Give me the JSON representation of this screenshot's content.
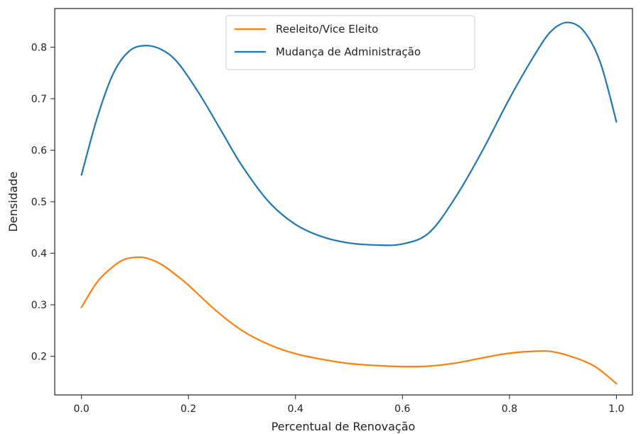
{
  "chart_data": {
    "type": "line",
    "title": "",
    "xlabel": "Percentual de Renovação",
    "ylabel": "Densidade",
    "xlim": [
      -0.05,
      1.03
    ],
    "ylim": [
      0.125,
      0.875
    ],
    "grid": false,
    "legend_position": "top-center",
    "x_ticks": [
      0.0,
      0.2,
      0.4,
      0.6,
      0.8,
      1.0
    ],
    "x_tick_labels": [
      "0.0",
      "0.2",
      "0.4",
      "0.6",
      "0.8",
      "1.0"
    ],
    "y_ticks": [
      0.2,
      0.3,
      0.4,
      0.5,
      0.6,
      0.7,
      0.8
    ],
    "y_tick_labels": [
      "0.2",
      "0.3",
      "0.4",
      "0.5",
      "0.6",
      "0.7",
      "0.8"
    ],
    "series": [
      {
        "name": "Reeleito/Vice Eleito",
        "color": "#ff7f0e",
        "x": [
          0.0,
          0.03,
          0.06,
          0.08,
          0.1,
          0.12,
          0.15,
          0.18,
          0.2,
          0.25,
          0.3,
          0.35,
          0.4,
          0.45,
          0.5,
          0.55,
          0.6,
          0.65,
          0.7,
          0.75,
          0.8,
          0.85,
          0.88,
          0.92,
          0.96,
          1.0
        ],
        "y": [
          0.295,
          0.345,
          0.375,
          0.388,
          0.392,
          0.391,
          0.378,
          0.355,
          0.338,
          0.29,
          0.25,
          0.223,
          0.205,
          0.194,
          0.186,
          0.182,
          0.18,
          0.181,
          0.187,
          0.197,
          0.206,
          0.21,
          0.209,
          0.198,
          0.18,
          0.147
        ]
      },
      {
        "name": "Mudança de Administração",
        "color": "#1f77b4",
        "x": [
          0.0,
          0.03,
          0.06,
          0.09,
          0.12,
          0.15,
          0.18,
          0.22,
          0.26,
          0.3,
          0.35,
          0.4,
          0.45,
          0.5,
          0.55,
          0.6,
          0.65,
          0.7,
          0.75,
          0.8,
          0.85,
          0.88,
          0.91,
          0.94,
          0.97,
          1.0
        ],
        "y": [
          0.552,
          0.665,
          0.75,
          0.793,
          0.803,
          0.795,
          0.77,
          0.71,
          0.64,
          0.57,
          0.5,
          0.456,
          0.432,
          0.42,
          0.416,
          0.418,
          0.44,
          0.51,
          0.6,
          0.7,
          0.79,
          0.833,
          0.848,
          0.83,
          0.77,
          0.655
        ]
      }
    ]
  }
}
